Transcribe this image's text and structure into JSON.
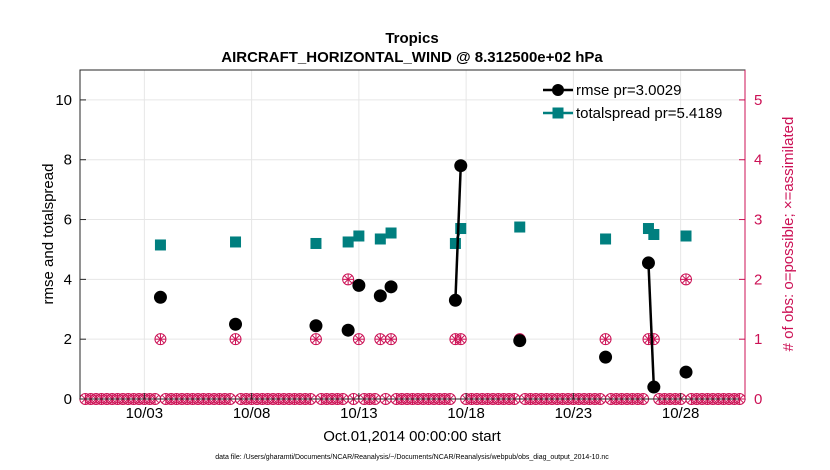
{
  "chart_data": {
    "type": "line",
    "title": "Tropics",
    "subtitle": "AIRCRAFT_HORIZONTAL_WIND @ 8.312500e+02 hPa",
    "ylabel": "rmse and totalspread",
    "y2label": "# of obs: o=possible; ×=assimilated",
    "xlabel": "Oct.01,2014 00:00:00 start",
    "footnote": "data file: /Users/gharamti/Documents/NCAR/Reanalysis/~/Documents/NCAR/Reanalysis/webpub/obs_diag_output_2014-10.nc",
    "xlim": [
      0.5,
      31.5
    ],
    "ylim": [
      0,
      11
    ],
    "y2lim": [
      0,
      5.5
    ],
    "x_tick_values": [
      3.5,
      8.5,
      13.5,
      18.5,
      23.5,
      28.5
    ],
    "x_tick_labels": [
      "10/03",
      "10/08",
      "10/13",
      "10/18",
      "10/23",
      "10/28"
    ],
    "y_tick_labels": [
      "0",
      "2",
      "4",
      "6",
      "8",
      "10"
    ],
    "y2_tick_labels": [
      "0",
      "1",
      "2",
      "3",
      "4",
      "5"
    ],
    "legend": [
      {
        "name": "rmse pr=3.0029",
        "color": "#000000",
        "marker": "circle"
      },
      {
        "name": "totalspread pr=5.4189",
        "color": "#007f7f",
        "marker": "square"
      }
    ],
    "series": [
      {
        "name": "rmse",
        "color": "#000000",
        "x": [
          4.25,
          7.75,
          11.5,
          13.0,
          13.5,
          14.5,
          15.0,
          18.0,
          18.25,
          21.0,
          25.0,
          27.0,
          27.25,
          28.75
        ],
        "values": [
          3.4,
          2.5,
          2.45,
          2.3,
          3.8,
          3.45,
          3.75,
          3.3,
          7.8,
          1.95,
          1.4,
          4.55,
          0.4,
          0.9
        ],
        "segments": [
          [
            7,
            8
          ],
          [
            11,
            12
          ]
        ]
      },
      {
        "name": "totalspread",
        "color": "#007f7f",
        "x": [
          4.25,
          7.75,
          11.5,
          13.0,
          13.5,
          14.5,
          15.0,
          18.0,
          18.25,
          21.0,
          25.0,
          27.0,
          27.25,
          28.75
        ],
        "values": [
          5.15,
          5.25,
          5.2,
          5.25,
          5.45,
          5.35,
          5.55,
          5.2,
          5.7,
          5.75,
          5.35,
          5.7,
          5.5,
          5.45
        ],
        "segments": [
          [
            7,
            8
          ],
          [
            11,
            12
          ]
        ]
      },
      {
        "name": "obs possible",
        "color": "#cc1155",
        "x_start": 0.5,
        "x_end": 31.5,
        "x_step": 0.25,
        "nonzero": [
          [
            4.25,
            1
          ],
          [
            7.75,
            1
          ],
          [
            11.5,
            1
          ],
          [
            13.0,
            2
          ],
          [
            13.5,
            1
          ],
          [
            14.5,
            1
          ],
          [
            15.0,
            1
          ],
          [
            18.0,
            1
          ],
          [
            18.25,
            1
          ],
          [
            21.0,
            1
          ],
          [
            25.0,
            1
          ],
          [
            27.0,
            1
          ],
          [
            27.25,
            1
          ],
          [
            28.75,
            2
          ]
        ]
      }
    ],
    "grid": true
  }
}
